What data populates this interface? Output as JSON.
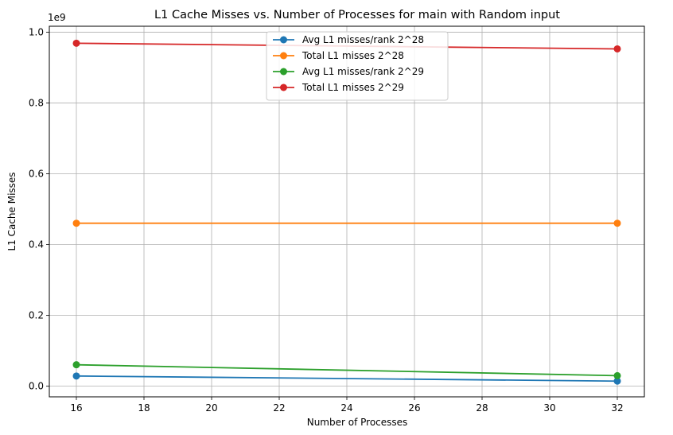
{
  "chart_data": {
    "type": "line",
    "title": "L1 Cache Misses vs. Number of Processes for main with Random input",
    "xlabel": "Number of Processes",
    "ylabel": "L1 Cache Misses",
    "y_offset_label": "1e9",
    "xlim": [
      15.2,
      32.8
    ],
    "ylim": [
      -0.03,
      1.017
    ],
    "x_ticks": [
      16,
      18,
      20,
      22,
      24,
      26,
      28,
      30,
      32
    ],
    "x_tick_labels": [
      "16",
      "18",
      "20",
      "22",
      "24",
      "26",
      "28",
      "30",
      "32"
    ],
    "y_ticks": [
      0.0,
      0.2,
      0.4,
      0.6,
      0.8,
      1.0
    ],
    "y_tick_labels": [
      "0.0",
      "0.2",
      "0.4",
      "0.6",
      "0.8",
      "1.0"
    ],
    "grid": true,
    "legend_position": "upper-center",
    "x": [
      16,
      32
    ],
    "series": [
      {
        "name": "Avg L1 misses/rank 2^28",
        "color": "#1f77b4",
        "values": [
          0.0288,
          0.0144
        ]
      },
      {
        "name": "Total L1 misses 2^28",
        "color": "#ff7f0e",
        "values": [
          0.4605,
          0.4605
        ]
      },
      {
        "name": "Avg L1 misses/rank 2^29",
        "color": "#2ca02c",
        "values": [
          0.0606,
          0.0298
        ]
      },
      {
        "name": "Total L1 misses 2^29",
        "color": "#d62728",
        "values": [
          0.969,
          0.953
        ]
      }
    ]
  }
}
